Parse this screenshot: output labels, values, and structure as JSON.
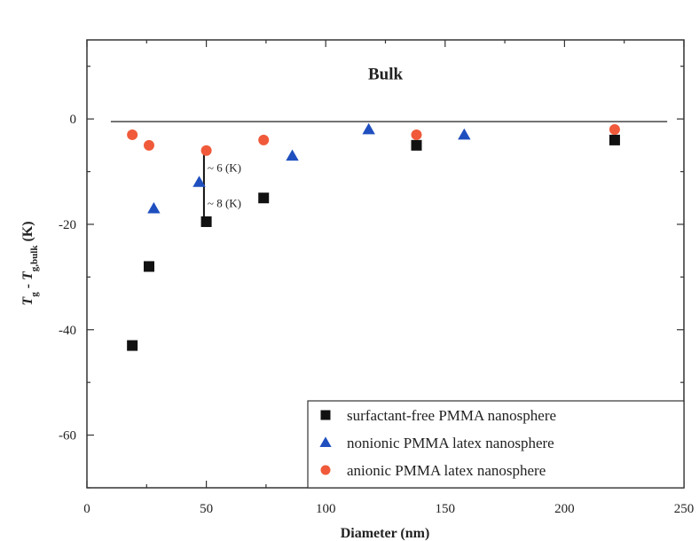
{
  "chart_data": {
    "type": "scatter",
    "xlabel": "Diameter (nm)",
    "ylabel": "Tg - Tg,bulk (K)",
    "ylabel_parts": {
      "main": "T",
      "sub1": "g",
      "mid": " - T",
      "sub2": "g,bulk",
      "tail": " (K)"
    },
    "xlim": [
      0,
      250
    ],
    "ylim": [
      -70,
      15
    ],
    "xticks": [
      0,
      50,
      100,
      150,
      200,
      250
    ],
    "yticks": [
      -60,
      -40,
      -20,
      0
    ],
    "grid": false,
    "legend_position": "bottom-right",
    "reference_line": {
      "y": -0.5,
      "x_range": [
        10,
        243
      ],
      "label": "Bulk"
    },
    "series": [
      {
        "name": "surfactant-free PMMA nanosphere",
        "marker": "square",
        "color": "#111111",
        "points": [
          [
            19,
            -43
          ],
          [
            26,
            -28
          ],
          [
            50,
            -19.5
          ],
          [
            74,
            -15
          ],
          [
            138,
            -5
          ],
          [
            221,
            -4
          ]
        ]
      },
      {
        "name": "nonionic PMMA latex nanosphere",
        "marker": "triangle",
        "color": "#1f4fbf",
        "points": [
          [
            28,
            -17
          ],
          [
            47,
            -12
          ],
          [
            86,
            -7
          ],
          [
            118,
            -2
          ],
          [
            158,
            -3
          ]
        ]
      },
      {
        "name": "anionic PMMA latex nanosphere",
        "marker": "circle",
        "color": "#f05a3a",
        "points": [
          [
            19,
            -3
          ],
          [
            26,
            -5
          ],
          [
            50,
            -6
          ],
          [
            74,
            -4
          ],
          [
            138,
            -3
          ],
          [
            221,
            -2
          ]
        ]
      }
    ],
    "annotations": [
      {
        "text": "~ 6 (K)",
        "x": 49,
        "y_from": -6,
        "y_to": -12
      },
      {
        "text": "~ 8 (K)",
        "x": 49,
        "y_from": -12,
        "y_to": -19.5
      }
    ]
  }
}
